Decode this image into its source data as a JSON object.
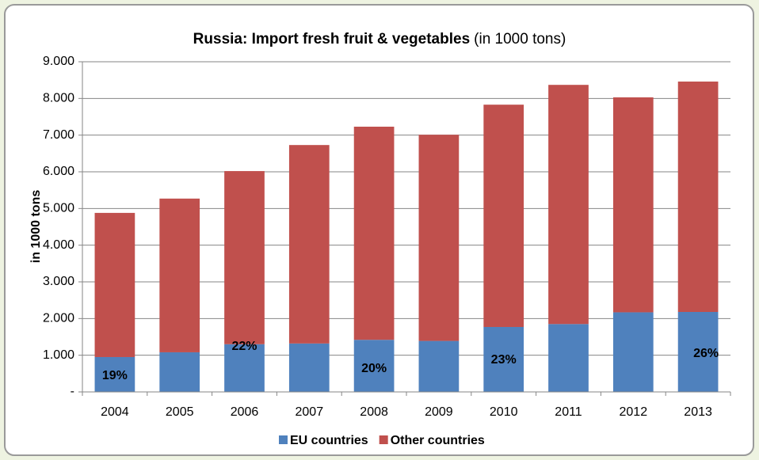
{
  "chart_data": {
    "type": "stacked_bar",
    "title": "Russia: Import fresh fruit & vegetables",
    "title_note": "(in 1000 tons)",
    "y_label": "in 1000 tons",
    "categories": [
      "2004",
      "2005",
      "2006",
      "2007",
      "2008",
      "2009",
      "2010",
      "2011",
      "2012",
      "2013"
    ],
    "series": [
      {
        "name": "EU countries",
        "color": "#4f81bd",
        "values": [
          950,
          1080,
          1300,
          1320,
          1420,
          1390,
          1770,
          1850,
          2170,
          2180
        ]
      },
      {
        "name": "Other countries",
        "color": "#c0504d",
        "values": [
          3930,
          4190,
          4720,
          5410,
          5810,
          5620,
          6060,
          6520,
          5860,
          6280
        ]
      }
    ],
    "annotations": [
      {
        "label": "19%",
        "category": "2004"
      },
      {
        "label": "22%",
        "category": "2006"
      },
      {
        "label": "20%",
        "category": "2008"
      },
      {
        "label": "23%",
        "category": "2010"
      },
      {
        "label": "26%",
        "category": "2013"
      }
    ],
    "ylim": [
      0,
      9000
    ],
    "yticks": [
      {
        "value": 0,
        "label": "-"
      },
      {
        "value": 1000,
        "label": "1.000"
      },
      {
        "value": 2000,
        "label": "2.000"
      },
      {
        "value": 3000,
        "label": "3.000"
      },
      {
        "value": 4000,
        "label": "4.000"
      },
      {
        "value": 5000,
        "label": "5.000"
      },
      {
        "value": 6000,
        "label": "6.000"
      },
      {
        "value": 7000,
        "label": "7.000"
      },
      {
        "value": 8000,
        "label": "8.000"
      },
      {
        "value": 9000,
        "label": "9.000"
      }
    ],
    "grid": true,
    "legend": "bottom"
  }
}
